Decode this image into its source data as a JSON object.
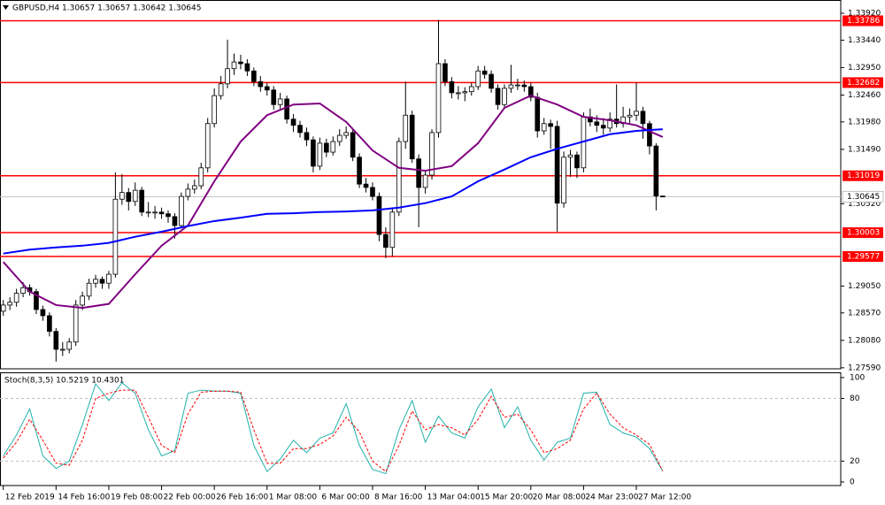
{
  "chart_data": [
    {
      "type": "candlestick",
      "title": "GBPUSD,H4 1.30657 1.30657 1.30642 1.30645",
      "xlim": [
        -0.5,
        127
      ],
      "ylim": [
        1.27572,
        1.34157
      ],
      "yticks": [
        {
          "value": 1.3392,
          "label": "1.33920"
        },
        {
          "value": 1.3344,
          "label": "1.33440"
        },
        {
          "value": 1.3295,
          "label": "1.32950"
        },
        {
          "value": 1.3246,
          "label": "1.32460"
        },
        {
          "value": 1.3198,
          "label": "1.31980"
        },
        {
          "value": 1.3149,
          "label": "1.31490"
        },
        {
          "value": 1.3052,
          "label": "1.30520"
        },
        {
          "value": 1.2905,
          "label": "1.29050"
        },
        {
          "value": 1.2857,
          "label": "1.28570"
        },
        {
          "value": 1.2808,
          "label": "1.28080"
        },
        {
          "value": 1.2759,
          "label": "1.27590"
        }
      ],
      "up_color": "#ffffff",
      "down_color": "#000000",
      "ohlc": [
        [
          1.286,
          1.288,
          1.2852,
          1.2871
        ],
        [
          1.2871,
          1.2885,
          1.2862,
          1.2876
        ],
        [
          1.2876,
          1.29,
          1.2868,
          1.2892
        ],
        [
          1.2892,
          1.2912,
          1.2885,
          1.2902
        ],
        [
          1.2902,
          1.2908,
          1.2888,
          1.2895
        ],
        [
          1.2895,
          1.29,
          1.2855,
          1.2863
        ],
        [
          1.2863,
          1.287,
          1.2843,
          1.2852
        ],
        [
          1.2852,
          1.2858,
          1.2815,
          1.2824
        ],
        [
          1.2824,
          1.283,
          1.277,
          1.2792
        ],
        [
          1.2792,
          1.2805,
          1.278,
          1.2792
        ],
        [
          1.2792,
          1.2812,
          1.2785,
          1.2805
        ],
        [
          1.2805,
          1.288,
          1.2798,
          1.2871
        ],
        [
          1.2871,
          1.2895,
          1.2862,
          1.2887
        ],
        [
          1.2887,
          1.2918,
          1.288,
          1.291
        ],
        [
          1.291,
          1.2925,
          1.2902,
          1.2917
        ],
        [
          1.2917,
          1.2922,
          1.29,
          1.291
        ],
        [
          1.291,
          1.2932,
          1.29,
          1.2926
        ],
        [
          1.2926,
          1.3108,
          1.292,
          1.306
        ],
        [
          1.306,
          1.3105,
          1.305,
          1.3072
        ],
        [
          1.3072,
          1.308,
          1.304,
          1.3056
        ],
        [
          1.3056,
          1.309,
          1.3048,
          1.3076
        ],
        [
          1.3076,
          1.3082,
          1.303,
          1.3037
        ],
        [
          1.3037,
          1.3055,
          1.3028,
          1.3037
        ],
        [
          1.3037,
          1.3048,
          1.3025,
          1.3037
        ],
        [
          1.3037,
          1.3045,
          1.3025,
          1.3034
        ],
        [
          1.3034,
          1.304,
          1.3018,
          1.3029
        ],
        [
          1.3029,
          1.3035,
          1.299,
          1.3013
        ],
        [
          1.3013,
          1.3072,
          1.3008,
          1.3065
        ],
        [
          1.3065,
          1.3088,
          1.3058,
          1.3078
        ],
        [
          1.3078,
          1.3095,
          1.307,
          1.3084
        ],
        [
          1.3084,
          1.3125,
          1.3078,
          1.3116
        ],
        [
          1.3116,
          1.3205,
          1.3108,
          1.3195
        ],
        [
          1.3195,
          1.3258,
          1.3188,
          1.3245
        ],
        [
          1.3245,
          1.328,
          1.3238,
          1.3266
        ],
        [
          1.3266,
          1.3345,
          1.3258,
          1.3293
        ],
        [
          1.3293,
          1.332,
          1.3282,
          1.3305
        ],
        [
          1.3305,
          1.3318,
          1.3292,
          1.3302
        ],
        [
          1.3302,
          1.331,
          1.328,
          1.3289
        ],
        [
          1.3289,
          1.3295,
          1.3262,
          1.327
        ],
        [
          1.327,
          1.328,
          1.3252,
          1.3261
        ],
        [
          1.3261,
          1.3268,
          1.3245,
          1.3255
        ],
        [
          1.3255,
          1.3262,
          1.322,
          1.3229
        ],
        [
          1.3229,
          1.325,
          1.322,
          1.3239
        ],
        [
          1.3239,
          1.3245,
          1.3195,
          1.3203
        ],
        [
          1.3203,
          1.3212,
          1.318,
          1.3192
        ],
        [
          1.3192,
          1.32,
          1.317,
          1.3179
        ],
        [
          1.3179,
          1.3188,
          1.3155,
          1.3166
        ],
        [
          1.3166,
          1.3172,
          1.3108,
          1.3119
        ],
        [
          1.3119,
          1.317,
          1.3112,
          1.316
        ],
        [
          1.316,
          1.3168,
          1.3135,
          1.3144
        ],
        [
          1.3144,
          1.3172,
          1.3138,
          1.3163
        ],
        [
          1.3163,
          1.3185,
          1.3155,
          1.3174
        ],
        [
          1.3174,
          1.319,
          1.3168,
          1.3179
        ],
        [
          1.3179,
          1.3185,
          1.3128,
          1.3135
        ],
        [
          1.3135,
          1.3142,
          1.308,
          1.3087
        ],
        [
          1.3087,
          1.3098,
          1.3072,
          1.3081
        ],
        [
          1.3081,
          1.309,
          1.3058,
          1.3065
        ],
        [
          1.3065,
          1.3072,
          1.2985,
          1.2997
        ],
        [
          1.2997,
          1.301,
          1.2955,
          1.2974
        ],
        [
          1.2974,
          1.3045,
          1.2958,
          1.3037
        ],
        [
          1.3037,
          1.317,
          1.303,
          1.3163
        ],
        [
          1.3163,
          1.327,
          1.315,
          1.321
        ],
        [
          1.321,
          1.3218,
          1.3125,
          1.3132
        ],
        [
          1.3132,
          1.314,
          1.301,
          1.3081
        ],
        [
          1.3081,
          1.311,
          1.307,
          1.3103
        ],
        [
          1.3103,
          1.3185,
          1.3095,
          1.3179
        ],
        [
          1.3179,
          1.338,
          1.317,
          1.3302
        ],
        [
          1.3302,
          1.331,
          1.3262,
          1.327
        ],
        [
          1.327,
          1.3278,
          1.324,
          1.325
        ],
        [
          1.325,
          1.3262,
          1.3238,
          1.325
        ],
        [
          1.325,
          1.326,
          1.3235,
          1.3252
        ],
        [
          1.3252,
          1.3268,
          1.3245,
          1.3261
        ],
        [
          1.3261,
          1.3298,
          1.3255,
          1.3289
        ],
        [
          1.3289,
          1.3298,
          1.3275,
          1.3283
        ],
        [
          1.3283,
          1.329,
          1.325,
          1.3258
        ],
        [
          1.3258,
          1.3265,
          1.322,
          1.3229
        ],
        [
          1.3229,
          1.3265,
          1.3222,
          1.3258
        ],
        [
          1.3258,
          1.33,
          1.325,
          1.3264
        ],
        [
          1.3264,
          1.3275,
          1.3255,
          1.3264
        ],
        [
          1.3264,
          1.3272,
          1.3252,
          1.3261
        ],
        [
          1.3261,
          1.3268,
          1.3235,
          1.3242
        ],
        [
          1.3242,
          1.325,
          1.317,
          1.3182
        ],
        [
          1.3182,
          1.3205,
          1.3175,
          1.3195
        ],
        [
          1.3195,
          1.3202,
          1.315,
          1.319
        ],
        [
          1.319,
          1.32,
          1.3002,
          1.3053
        ],
        [
          1.3053,
          1.3145,
          1.3045,
          1.3135
        ],
        [
          1.3135,
          1.3148,
          1.31,
          1.3139
        ],
        [
          1.3139,
          1.3145,
          1.3098,
          1.3116
        ],
        [
          1.3116,
          1.3215,
          1.3108,
          1.3207
        ],
        [
          1.3207,
          1.3222,
          1.319,
          1.3198
        ],
        [
          1.3198,
          1.321,
          1.318,
          1.3192
        ],
        [
          1.3192,
          1.3205,
          1.3175,
          1.3187
        ],
        [
          1.3187,
          1.3215,
          1.318,
          1.3203
        ],
        [
          1.3203,
          1.3265,
          1.3188,
          1.3195
        ],
        [
          1.3195,
          1.3225,
          1.3188,
          1.3207
        ],
        [
          1.3207,
          1.3222,
          1.3195,
          1.321
        ],
        [
          1.321,
          1.3268,
          1.32,
          1.3217
        ],
        [
          1.3217,
          1.3225,
          1.3168,
          1.3195
        ],
        [
          1.3195,
          1.32,
          1.314,
          1.3155
        ],
        [
          1.3155,
          1.316,
          1.304,
          1.30657
        ],
        [
          1.30657,
          1.30657,
          1.30642,
          1.30645
        ]
      ],
      "lines": [
        {
          "color": "#800080",
          "x": [
            0,
            4,
            8,
            12,
            16,
            20,
            24,
            28,
            32,
            36,
            40,
            44,
            48,
            52,
            56,
            60,
            64,
            68,
            72,
            76,
            80,
            84,
            88,
            92,
            96,
            100
          ],
          "values": [
            1.2948,
            1.2895,
            1.2871,
            1.2866,
            1.2873,
            1.2926,
            1.2977,
            1.3013,
            1.3092,
            1.3163,
            1.321,
            1.3229,
            1.3231,
            1.3198,
            1.3147,
            1.3116,
            1.3111,
            1.3119,
            1.316,
            1.3223,
            1.3245,
            1.3229,
            1.3207,
            1.3201,
            1.3192,
            1.3171
          ]
        },
        {
          "color": "#0000ff",
          "x": [
            0,
            4,
            8,
            12,
            16,
            20,
            24,
            28,
            32,
            36,
            40,
            44,
            48,
            52,
            56,
            60,
            64,
            68,
            72,
            76,
            80,
            84,
            88,
            92,
            96,
            100
          ],
          "values": [
            1.2963,
            1.297,
            1.2974,
            1.2977,
            1.2982,
            1.2993,
            1.3002,
            1.3012,
            1.3021,
            1.3027,
            1.3034,
            1.3035,
            1.3037,
            1.3038,
            1.304,
            1.3045,
            1.3053,
            1.3065,
            1.3092,
            1.3113,
            1.3135,
            1.315,
            1.3163,
            1.3176,
            1.3182,
            1.3185
          ]
        }
      ],
      "hlines": {
        "color": "#ff0000",
        "values": [
          1.33786,
          1.32682,
          1.31019,
          1.30003,
          1.29577
        ]
      },
      "last_price": 1.30645
    },
    {
      "type": "line",
      "title": "Stoch(8,3,5) 10.5219 10.4301",
      "xlim": [
        -0.5,
        127
      ],
      "ylim": [
        -3.4,
        105
      ],
      "yticks": [
        100,
        80,
        20,
        0
      ],
      "levels": [
        80,
        20
      ],
      "xticks": [
        {
          "value": 0,
          "label": "12 Feb 2019"
        },
        {
          "value": 8,
          "label": "14 Feb 16:00"
        },
        {
          "value": 16,
          "label": "19 Feb 08:00"
        },
        {
          "value": 24,
          "label": "22 Feb 00:00"
        },
        {
          "value": 32,
          "label": "26 Feb 16:00"
        },
        {
          "value": 40,
          "label": "1 Mar 08:00"
        },
        {
          "value": 48,
          "label": "6 Mar 00:00"
        },
        {
          "value": 56,
          "label": "8 Mar 16:00"
        },
        {
          "value": 64,
          "label": "13 Mar 04:00"
        },
        {
          "value": 72,
          "label": "15 Mar 20:00"
        },
        {
          "value": 80,
          "label": "20 Mar 08:00"
        },
        {
          "value": 88,
          "label": "24 Mar 23:00"
        },
        {
          "value": 96,
          "label": "27 Mar 12:00"
        }
      ],
      "x": [
        0,
        2,
        4,
        6,
        8,
        10,
        12,
        14,
        16,
        18,
        20,
        22,
        24,
        26,
        28,
        30,
        32,
        34,
        36,
        38,
        40,
        42,
        44,
        46,
        48,
        50,
        52,
        54,
        56,
        58,
        60,
        62,
        64,
        66,
        68,
        70,
        72,
        74,
        76,
        78,
        80,
        82,
        84,
        86,
        88,
        90,
        92,
        94,
        96,
        98,
        100
      ],
      "series": [
        {
          "color": "#20b2aa",
          "dash": false,
          "values": [
            25,
            45,
            70,
            25,
            13,
            20,
            55,
            94,
            78,
            95,
            85,
            50,
            25,
            30,
            85,
            88,
            87,
            87,
            85,
            35,
            10,
            22,
            40,
            28,
            42,
            47,
            75,
            35,
            12,
            8,
            50,
            78,
            38,
            63,
            47,
            42,
            72,
            89,
            52,
            72,
            40,
            21,
            38,
            42,
            85,
            86,
            55,
            47,
            43,
            32,
            10.5219
          ]
        },
        {
          "color": "#ff0000",
          "dash": true,
          "values": [
            23,
            38,
            60,
            40,
            18,
            16,
            40,
            80,
            85,
            88,
            88,
            62,
            35,
            28,
            65,
            86,
            87,
            87,
            86,
            50,
            18,
            18,
            32,
            32,
            36,
            44,
            62,
            48,
            20,
            10,
            35,
            68,
            50,
            55,
            52,
            45,
            60,
            82,
            62,
            65,
            50,
            28,
            32,
            40,
            70,
            85,
            65,
            52,
            45,
            36,
            10.4301
          ]
        }
      ]
    }
  ]
}
